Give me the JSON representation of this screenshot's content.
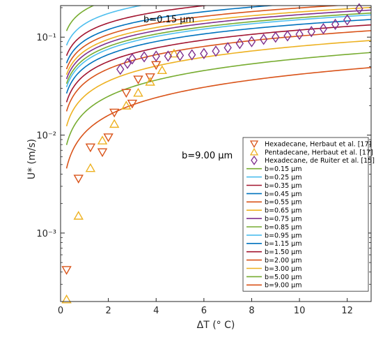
{
  "chart_data": {
    "type": "line",
    "title": "",
    "xlabel": "ΔT (° C)",
    "ylabel": "U* (m/s)",
    "xlim": [
      0,
      13
    ],
    "ylim": [
      0.0002,
      0.21
    ],
    "yscale": "log",
    "grid": false,
    "legend_position": "right",
    "xticks": [
      0,
      2,
      4,
      6,
      8,
      10,
      12
    ],
    "xtick_labels": [
      "0",
      "2",
      "4",
      "6",
      "8",
      "10",
      "12"
    ],
    "yticks": [
      0.001,
      0.01,
      0.1
    ],
    "ytick_labels": [
      "10⁻³",
      "10⁻²",
      "10⁻¹"
    ],
    "annotations": [
      {
        "text": "b=0.15 µm",
        "x": 4.4,
        "y": 0.17
      },
      {
        "text": "b=9.00 µm",
        "x": 6.6,
        "y": 0.0068
      }
    ],
    "model_curves": [
      {
        "name": "b=0.15 µm",
        "color": "#77ac30",
        "a": 0.188,
        "e": 0.35
      },
      {
        "name": "b=0.25 µm",
        "color": "#4dbeee",
        "a": 0.136,
        "e": 0.36
      },
      {
        "name": "b=0.35 µm",
        "color": "#a2142f",
        "a": 0.108,
        "e": 0.37
      },
      {
        "name": "b=0.45 µm",
        "color": "#0072bd",
        "a": 0.092,
        "e": 0.38
      },
      {
        "name": "b=0.55 µm",
        "color": "#d95319",
        "a": 0.081,
        "e": 0.39
      },
      {
        "name": "b=0.65 µm",
        "color": "#edb120",
        "a": 0.072,
        "e": 0.4
      },
      {
        "name": "b=0.75 µm",
        "color": "#7e2f8e",
        "a": 0.066,
        "e": 0.41
      },
      {
        "name": "b=0.85 µm",
        "color": "#77ac30",
        "a": 0.06,
        "e": 0.42
      },
      {
        "name": "b=0.95 µm",
        "color": "#4dbeee",
        "a": 0.056,
        "e": 0.43
      },
      {
        "name": "b=1.15 µm",
        "color": "#0072bd",
        "a": 0.049,
        "e": 0.44
      },
      {
        "name": "b=1.50 µm",
        "color": "#a2142f",
        "a": 0.041,
        "e": 0.46
      },
      {
        "name": "b=2.00 µm",
        "color": "#d95319",
        "a": 0.034,
        "e": 0.48
      },
      {
        "name": "b=3.00 µm",
        "color": "#edb120",
        "a": 0.025,
        "e": 0.51
      },
      {
        "name": "b=5.00 µm",
        "color": "#77ac30",
        "a": 0.017,
        "e": 0.55
      },
      {
        "name": "b=9.00 µm",
        "color": "#d95319",
        "a": 0.0105,
        "e": 0.6
      }
    ],
    "series": [
      {
        "name": "Hexadecane, Herbaut et al. [17]",
        "marker": "triangle-down",
        "color": "#d95319",
        "x": [
          0.25,
          0.75,
          1.25,
          1.75,
          2.0,
          2.25,
          2.75,
          3.0,
          3.25,
          3.75,
          4.0
        ],
        "y": [
          0.00042,
          0.0036,
          0.0075,
          0.0067,
          0.0095,
          0.017,
          0.027,
          0.021,
          0.037,
          0.039,
          0.052
        ]
      },
      {
        "name": "Pentadecane, Herbaut et al. [17]",
        "marker": "triangle-up",
        "color": "#edb120",
        "x": [
          0.25,
          0.75,
          1.25,
          1.75,
          2.25,
          2.75,
          3.25,
          3.75,
          4.25,
          4.75
        ],
        "y": [
          0.00021,
          0.0015,
          0.0046,
          0.0088,
          0.013,
          0.02,
          0.027,
          0.035,
          0.046,
          0.068
        ]
      },
      {
        "name": "Hexadecane, de Ruiter et al. [15]",
        "marker": "diamond",
        "color": "#7e2f8e",
        "x": [
          2.5,
          2.8,
          3.0,
          3.5,
          4.0,
          4.5,
          5.0,
          5.5,
          6.0,
          6.5,
          7.0,
          7.5,
          8.0,
          8.5,
          9.0,
          9.5,
          10.0,
          10.5,
          11.0,
          11.5,
          12.0,
          12.5
        ],
        "y": [
          0.047,
          0.054,
          0.06,
          0.063,
          0.064,
          0.064,
          0.065,
          0.066,
          0.068,
          0.072,
          0.078,
          0.086,
          0.09,
          0.095,
          0.1,
          0.103,
          0.107,
          0.114,
          0.122,
          0.135,
          0.15,
          0.195
        ]
      }
    ]
  }
}
